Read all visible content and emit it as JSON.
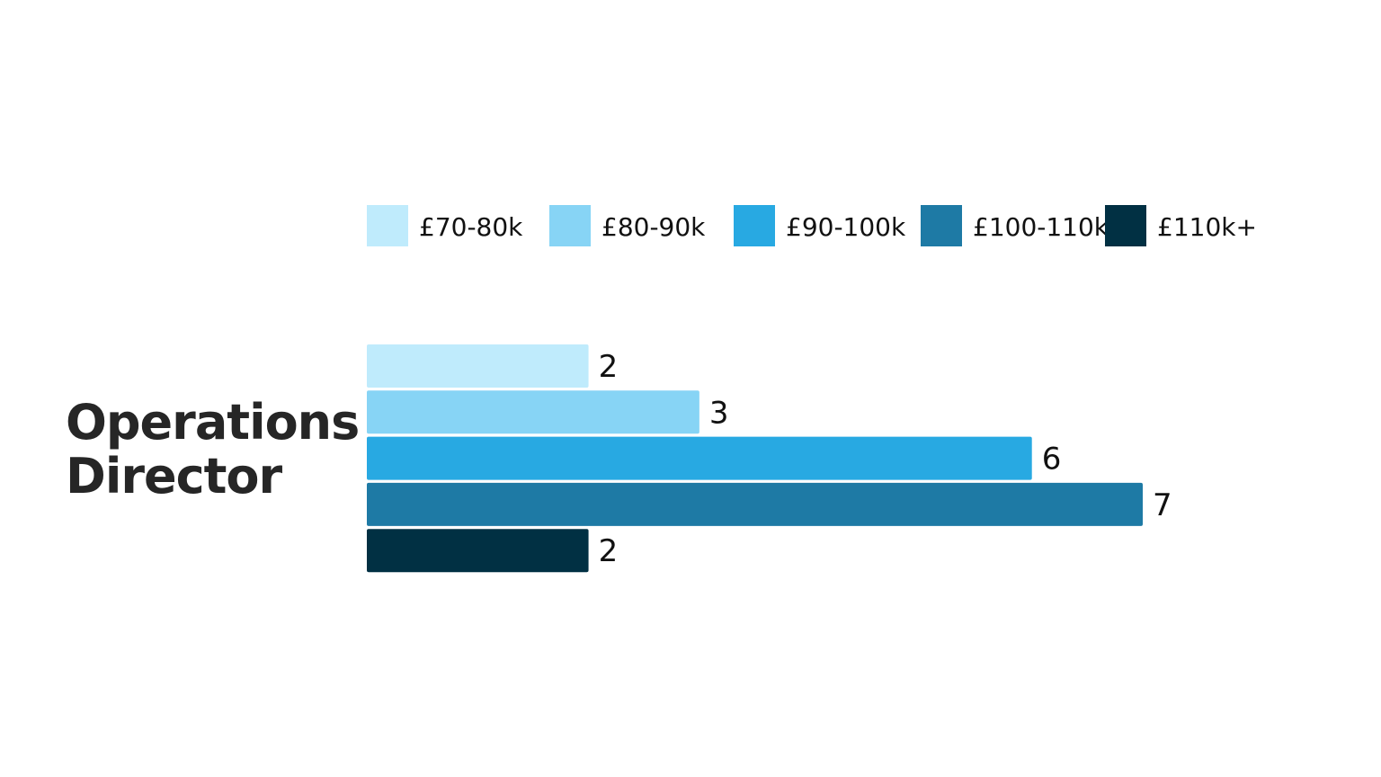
{
  "title_lines": [
    "Operations",
    "Director"
  ],
  "chart_data": {
    "type": "bar",
    "orientation": "horizontal",
    "categories": [
      "Operations Director"
    ],
    "series": [
      {
        "name": "£70-80k",
        "values": [
          2
        ],
        "color": "#BFEBFC"
      },
      {
        "name": "£80-90k",
        "values": [
          3
        ],
        "color": "#87D4F5"
      },
      {
        "name": "£90-100k",
        "values": [
          6
        ],
        "color": "#28A9E2"
      },
      {
        "name": "£100-110k",
        "values": [
          7
        ],
        "color": "#1E7AA5"
      },
      {
        "name": "£110k+",
        "values": [
          2
        ],
        "color": "#013043"
      }
    ],
    "xlim": [
      0,
      7
    ],
    "data_labels": true,
    "legend_position": "top",
    "grid": false,
    "title": ""
  }
}
